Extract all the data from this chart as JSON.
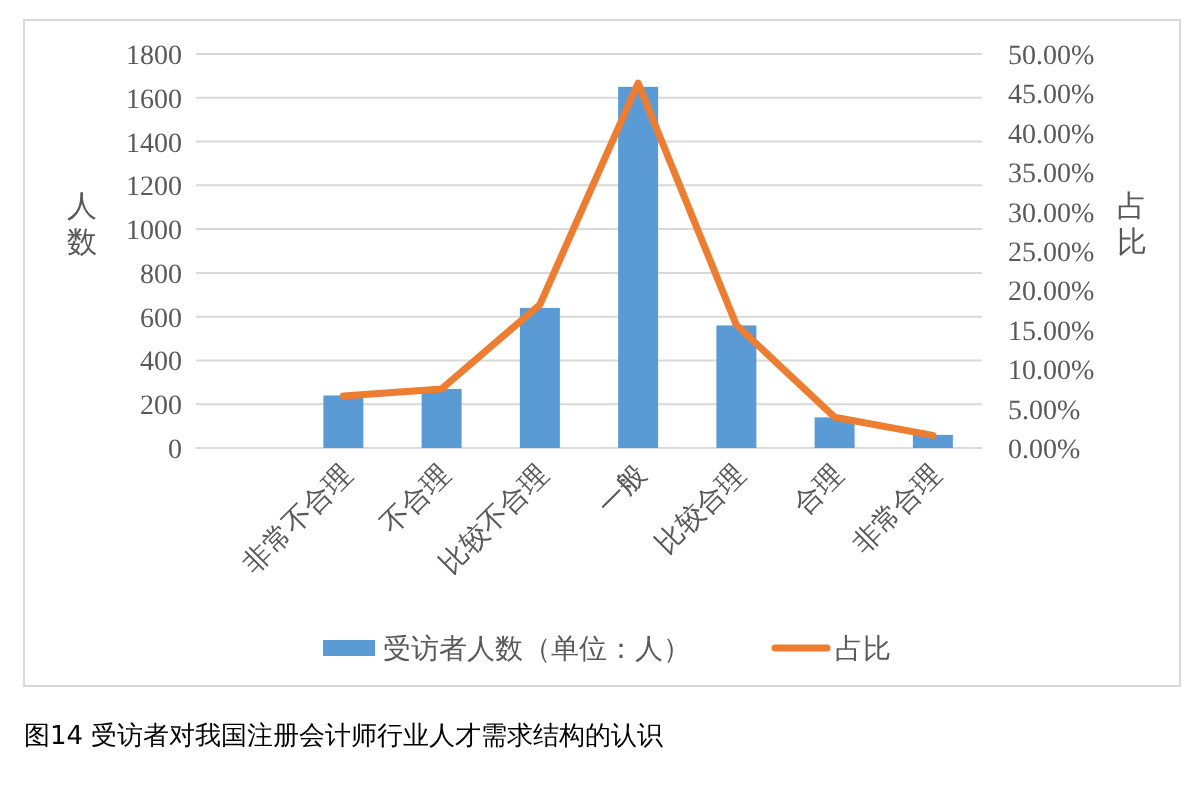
{
  "chart_data": {
    "type": "bar",
    "categories": [
      null,
      "非常不合理",
      "不合理",
      "比较不合理",
      "一般",
      "比较合理",
      "合理",
      "非常合理"
    ],
    "series": [
      {
        "name": "受访者人数（单位：人）",
        "color": "#5b9bd5",
        "values": [
          null,
          240,
          270,
          640,
          1650,
          560,
          140,
          60
        ]
      },
      {
        "name": "占比",
        "type": "line",
        "axis": "y2",
        "color": "#ed7d31",
        "values": [
          null,
          6.6,
          7.5,
          18.2,
          46.3,
          15.6,
          3.9,
          1.6
        ]
      }
    ],
    "ylabel": "人数",
    "y2label": "占比",
    "ylim": [
      0,
      1800
    ],
    "yticks": [
      0,
      200,
      400,
      600,
      800,
      1000,
      1200,
      1400,
      1600,
      1800
    ],
    "y2lim": [
      0,
      50
    ],
    "y2ticks": [
      {
        "value": 0,
        "label": "0.00%"
      },
      {
        "value": 5,
        "label": "5.00%"
      },
      {
        "value": 10,
        "label": "10.00%"
      },
      {
        "value": 15,
        "label": "15.00%"
      },
      {
        "value": 20,
        "label": "20.00%"
      },
      {
        "value": 25,
        "label": "25.00%"
      },
      {
        "value": 30,
        "label": "30.00%"
      },
      {
        "value": 35,
        "label": "35.00%"
      },
      {
        "value": 40,
        "label": "40.00%"
      },
      {
        "value": 45,
        "label": "45.00%"
      },
      {
        "value": 50,
        "label": "50.00%"
      }
    ],
    "grid": "y",
    "legend": "bottom",
    "annotations": [
      "图14 受访者对我国注册会计师行业人才需求结构的认识"
    ]
  }
}
